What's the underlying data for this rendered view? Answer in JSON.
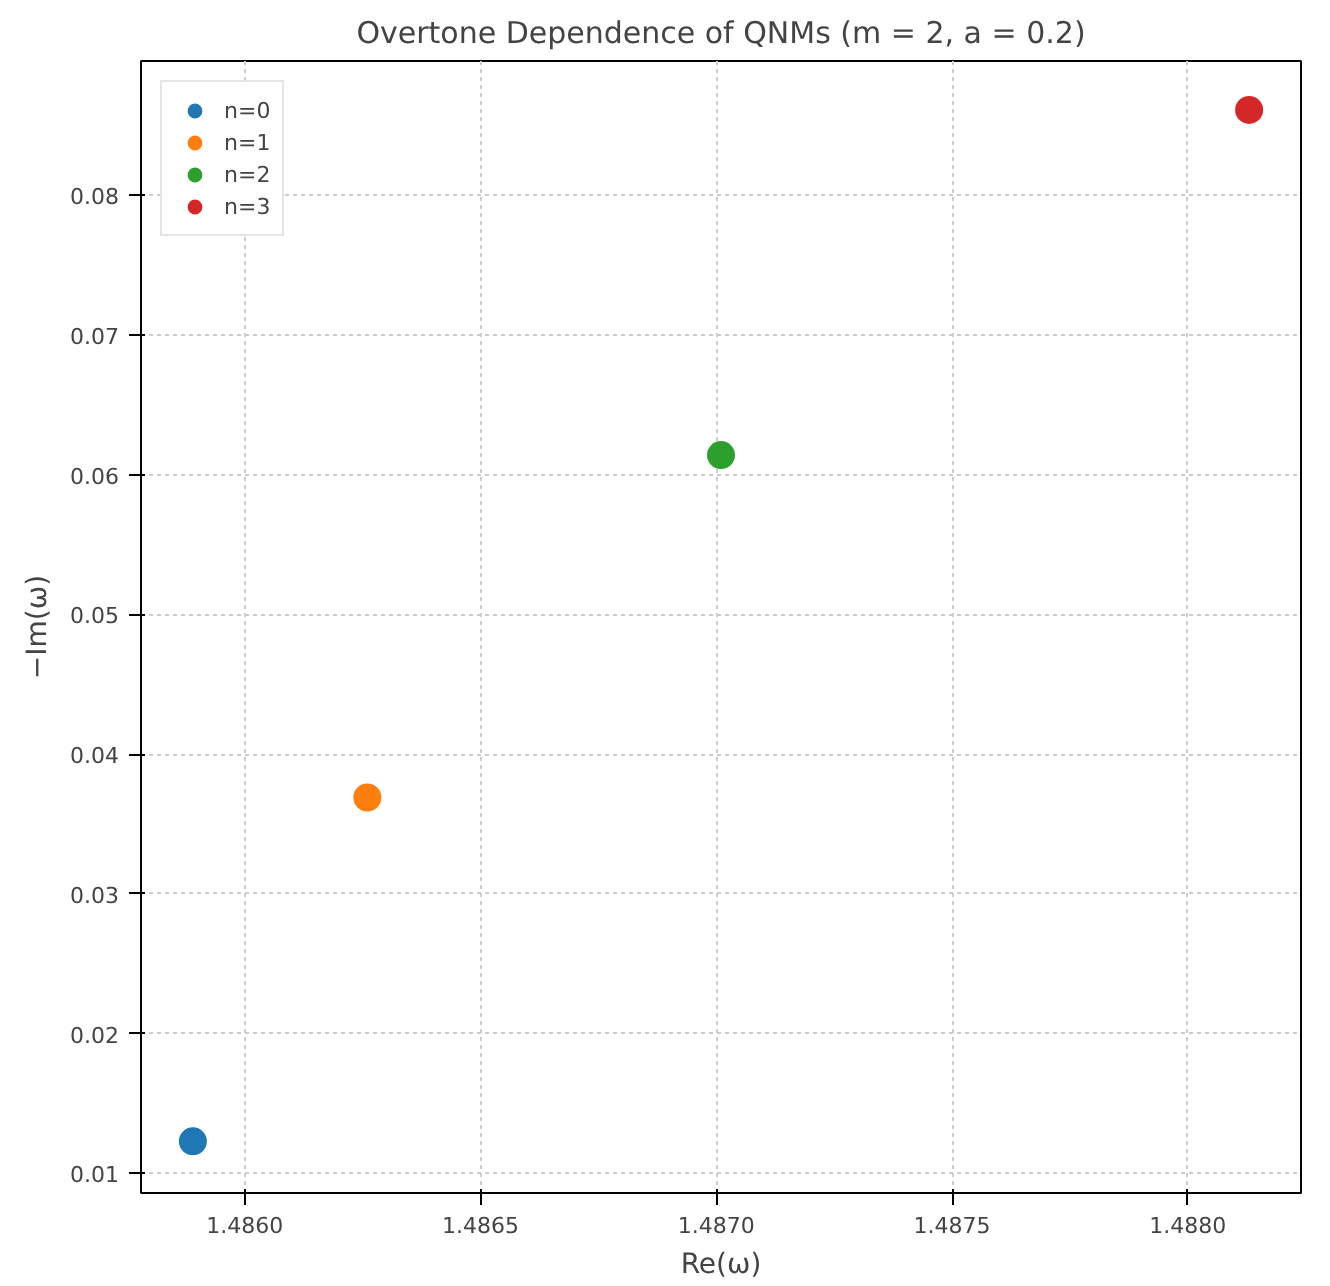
{
  "chart_data": {
    "type": "scatter",
    "title": "Overtone Dependence of QNMs (m = 2, a = 0.2)",
    "xlabel": "Re(ω)",
    "ylabel": "−Im(ω)",
    "series": [
      {
        "name": "n=0",
        "color": "#1f77b4",
        "x": [
          1.48589
        ],
        "values": [
          0.0123
        ]
      },
      {
        "name": "n=1",
        "color": "#ff7f0e",
        "x": [
          1.48626
        ],
        "values": [
          0.0369
        ]
      },
      {
        "name": "n=2",
        "color": "#2ca02c",
        "x": [
          1.48701
        ],
        "values": [
          0.0614
        ]
      },
      {
        "name": "n=3",
        "color": "#d62728",
        "x": [
          1.48813
        ],
        "values": [
          0.0861
        ]
      }
    ],
    "xlim": [
      1.48578,
      1.48824
    ],
    "ylim": [
      0.0086,
      0.0896
    ],
    "xticks": [
      {
        "value": 1.486,
        "label": "1.4860"
      },
      {
        "value": 1.4865,
        "label": "1.4865"
      },
      {
        "value": 1.487,
        "label": "1.4870"
      },
      {
        "value": 1.4875,
        "label": "1.4875"
      },
      {
        "value": 1.488,
        "label": "1.4880"
      }
    ],
    "yticks": [
      {
        "value": 0.01,
        "label": "0.01"
      },
      {
        "value": 0.02,
        "label": "0.02"
      },
      {
        "value": 0.03,
        "label": "0.03"
      },
      {
        "value": 0.04,
        "label": "0.04"
      },
      {
        "value": 0.05,
        "label": "0.05"
      },
      {
        "value": 0.06,
        "label": "0.06"
      },
      {
        "value": 0.07,
        "label": "0.07"
      },
      {
        "value": 0.08,
        "label": "0.08"
      }
    ],
    "grid": true,
    "legend": "top left",
    "marker": "circle"
  }
}
